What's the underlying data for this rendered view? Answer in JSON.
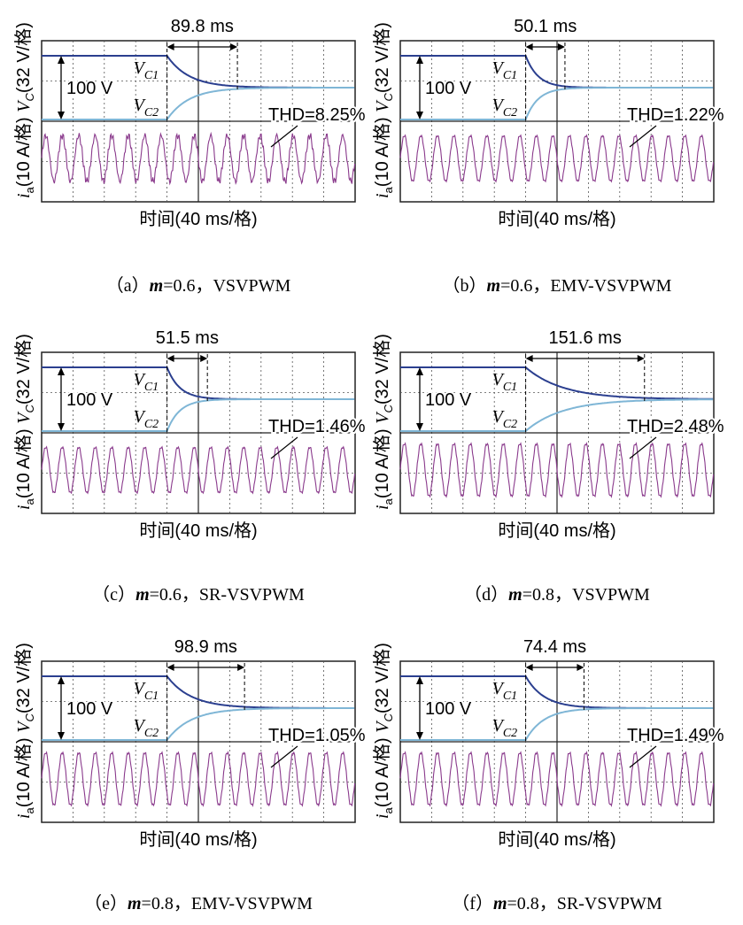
{
  "figure": {
    "y_axis_voltage_label": "V",
    "y_axis_voltage_sub": "C",
    "y_axis_voltage_unit": "(32 V/格)",
    "y_axis_current_label": "i",
    "y_axis_current_sub": "a",
    "y_axis_current_unit": "(10 A/格)",
    "x_axis_label": "时间(40 ms/格)",
    "amplitude_label": "100 V",
    "vc1_label": "V",
    "vc1_sub": "C1",
    "vc2_label": "V",
    "vc2_sub": "C2"
  },
  "chart_data": [
    {
      "type": "line",
      "panel": "a",
      "caption_prefix": "（a）",
      "caption_m": "m",
      "caption_rest": "=0.6，VSVPWM",
      "balance_time_label": "89.8 ms",
      "balance_time_ms": 89.8,
      "thd_label": "THD=8.25%",
      "thd_percent": 8.25,
      "m": 0.6,
      "method": "VSVPWM",
      "time_per_div_ms": 40,
      "vc_initial_diff_V": 100,
      "colors": {
        "vc1": "#2b3f8f",
        "vc2": "#7fb6d6",
        "ia": "#8a3a8c"
      }
    },
    {
      "type": "line",
      "panel": "b",
      "caption_prefix": "（b）",
      "caption_m": "m",
      "caption_rest": "=0.6，EMV-VSVPWM",
      "balance_time_label": "50.1 ms",
      "balance_time_ms": 50.1,
      "thd_label": "THD=1.22%",
      "thd_percent": 1.22,
      "m": 0.6,
      "method": "EMV-VSVPWM",
      "time_per_div_ms": 40,
      "vc_initial_diff_V": 100,
      "colors": {
        "vc1": "#2b3f8f",
        "vc2": "#7fb6d6",
        "ia": "#8a3a8c"
      }
    },
    {
      "type": "line",
      "panel": "c",
      "caption_prefix": "（c）",
      "caption_m": "m",
      "caption_rest": "=0.6，SR-VSVPWM",
      "balance_time_label": "51.5 ms",
      "balance_time_ms": 51.5,
      "thd_label": "THD=1.46%",
      "thd_percent": 1.46,
      "m": 0.6,
      "method": "SR-VSVPWM",
      "time_per_div_ms": 40,
      "vc_initial_diff_V": 100,
      "colors": {
        "vc1": "#2b3f8f",
        "vc2": "#7fb6d6",
        "ia": "#8a3a8c"
      }
    },
    {
      "type": "line",
      "panel": "d",
      "caption_prefix": "（d）",
      "caption_m": "m",
      "caption_rest": "=0.8，VSVPWM",
      "balance_time_label": "151.6 ms",
      "balance_time_ms": 151.6,
      "thd_label": "THD=2.48%",
      "thd_percent": 2.48,
      "m": 0.8,
      "method": "VSVPWM",
      "time_per_div_ms": 40,
      "vc_initial_diff_V": 100,
      "colors": {
        "vc1": "#2b3f8f",
        "vc2": "#7fb6d6",
        "ia": "#8a3a8c"
      }
    },
    {
      "type": "line",
      "panel": "e",
      "caption_prefix": "（e）",
      "caption_m": "m",
      "caption_rest": "=0.8，EMV-VSVPWM",
      "balance_time_label": "98.9 ms",
      "balance_time_ms": 98.9,
      "thd_label": "THD=1.05%",
      "thd_percent": 1.05,
      "m": 0.8,
      "method": "EMV-VSVPWM",
      "time_per_div_ms": 40,
      "vc_initial_diff_V": 100,
      "colors": {
        "vc1": "#2b3f8f",
        "vc2": "#7fb6d6",
        "ia": "#8a3a8c"
      }
    },
    {
      "type": "line",
      "panel": "f",
      "caption_prefix": "（f）",
      "caption_m": "m",
      "caption_rest": "=0.8，SR-VSVPWM",
      "balance_time_label": "74.4 ms",
      "balance_time_ms": 74.4,
      "thd_label": "THD=1.49%",
      "thd_percent": 1.49,
      "m": 0.8,
      "method": "SR-VSVPWM",
      "time_per_div_ms": 40,
      "vc_initial_diff_V": 100,
      "colors": {
        "vc1": "#2b3f8f",
        "vc2": "#7fb6d6",
        "ia": "#8a3a8c"
      }
    }
  ]
}
